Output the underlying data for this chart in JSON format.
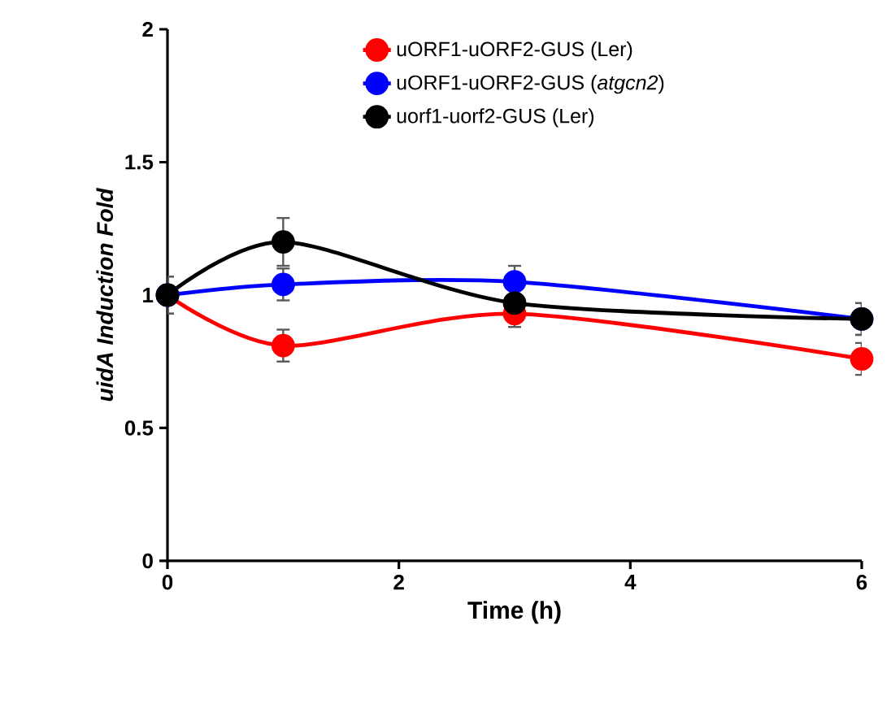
{
  "chart_data": {
    "type": "line",
    "xlabel": "Time (h)",
    "ylabel": "uidA Induction Fold",
    "x": [
      0,
      1,
      3,
      6
    ],
    "series": [
      {
        "name": "uORF1-uORF2-GUS (Ler)",
        "color": "#ff0000",
        "values": [
          1.0,
          0.81,
          0.93,
          0.76
        ],
        "errors": [
          0.07,
          0.06,
          0.05,
          0.06
        ]
      },
      {
        "name": "uORF1-uORF2-GUS (*atgcn2*)",
        "color": "#0000ff",
        "values": [
          1.0,
          1.04,
          1.05,
          0.91
        ],
        "errors": [
          0.07,
          0.06,
          0.06,
          0.06
        ]
      },
      {
        "name": "uorf1-uorf2-GUS (Ler)",
        "color": "#000000",
        "values": [
          1.0,
          1.2,
          0.97,
          0.91
        ],
        "errors": [
          0.07,
          0.09,
          null,
          0.06
        ]
      }
    ],
    "xlim": [
      0,
      6
    ],
    "xticks": [
      0,
      2,
      4,
      6
    ],
    "ylim": [
      0,
      2
    ],
    "yticks": [
      0,
      0.5,
      1,
      1.5,
      2
    ],
    "grid": false,
    "legend": "top",
    "marker": "circle",
    "line_style": "solid"
  }
}
